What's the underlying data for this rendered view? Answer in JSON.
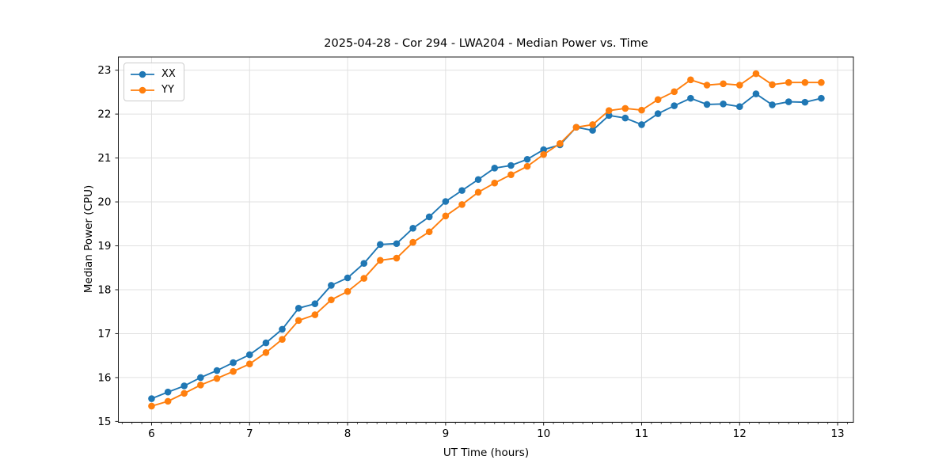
{
  "chart_data": {
    "type": "line",
    "title": "2025-04-28 - Cor 294 - LWA204 - Median Power vs. Time",
    "xlabel": "UT Time (hours)",
    "ylabel": "Median Power (CPU)",
    "xlim": [
      5.661,
      13.161
    ],
    "ylim": [
      14.98,
      23.3
    ],
    "x_ticks": [
      6,
      7,
      8,
      9,
      10,
      11,
      12,
      13
    ],
    "y_ticks": [
      15,
      16,
      17,
      18,
      19,
      20,
      21,
      22,
      23
    ],
    "x_minor_tick_step": 0.1,
    "grid": true,
    "grid_color": "#e0e0e0",
    "spine_color": "#1a1a1a",
    "legend_position": "upper left",
    "marker": "circle",
    "x": [
      6.0,
      6.167,
      6.333,
      6.5,
      6.667,
      6.833,
      7.0,
      7.167,
      7.333,
      7.5,
      7.667,
      7.833,
      8.0,
      8.167,
      8.333,
      8.5,
      8.667,
      8.833,
      9.0,
      9.167,
      9.333,
      9.5,
      9.667,
      9.833,
      10.0,
      10.167,
      10.333,
      10.5,
      10.667,
      10.833,
      11.0,
      11.167,
      11.333,
      11.5,
      11.667,
      11.833,
      12.0,
      12.167,
      12.333,
      12.5,
      12.667,
      12.833
    ],
    "series": [
      {
        "name": "XX",
        "color": "#1f77b4",
        "values": [
          15.52,
          15.67,
          15.81,
          16.0,
          16.16,
          16.34,
          16.52,
          16.79,
          17.1,
          17.58,
          17.68,
          18.1,
          18.27,
          18.6,
          19.03,
          19.05,
          19.4,
          19.66,
          20.01,
          20.26,
          20.51,
          20.77,
          20.83,
          20.97,
          21.19,
          21.3,
          21.7,
          21.63,
          21.97,
          21.91,
          21.76,
          22.01,
          22.19,
          22.36,
          22.22,
          22.23,
          22.17,
          22.46,
          22.21,
          22.28,
          22.27,
          22.36
        ]
      },
      {
        "name": "YY",
        "color": "#ff7f0e",
        "values": [
          15.35,
          15.46,
          15.64,
          15.83,
          15.98,
          16.14,
          16.31,
          16.57,
          16.87,
          17.3,
          17.43,
          17.77,
          17.96,
          18.26,
          18.67,
          18.72,
          19.08,
          19.32,
          19.68,
          19.94,
          20.22,
          20.43,
          20.62,
          20.81,
          21.08,
          21.33,
          21.7,
          21.76,
          22.08,
          22.13,
          22.09,
          22.33,
          22.51,
          22.78,
          22.66,
          22.69,
          22.66,
          22.92,
          22.67,
          22.72,
          22.72,
          22.72
        ]
      }
    ]
  }
}
